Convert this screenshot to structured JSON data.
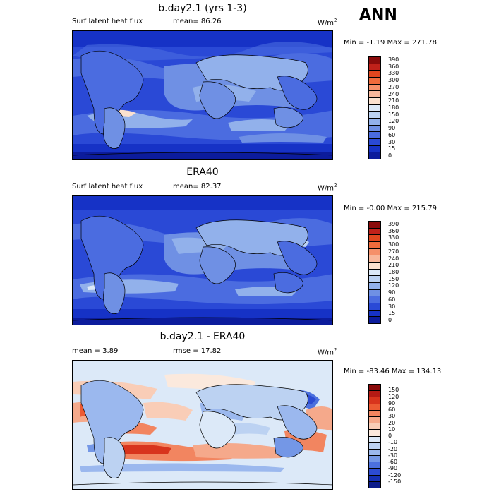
{
  "season": "ANN",
  "panels": [
    {
      "title": "b.day2.1 (yrs 1-3)",
      "left_label": "Surf latent heat flux",
      "center_label": "mean=  86.26",
      "units": "W/m",
      "units_sup": "2",
      "minmax": "Min =  -1.19 Max = 271.78",
      "levels": [
        "390",
        "360",
        "330",
        "300",
        "270",
        "240",
        "210",
        "180",
        "150",
        "120",
        "90",
        "60",
        "30",
        "15",
        "0"
      ],
      "colors": [
        "#8a0b0b",
        "#c0211a",
        "#e0471f",
        "#ef6b3c",
        "#f5906a",
        "#f8b79b",
        "#fbe1cf",
        "#dce9f8",
        "#bcd2f2",
        "#92b1eb",
        "#6f90e4",
        "#4b6ce0",
        "#2a49d6",
        "#1632c6",
        "#0c1c9c"
      ]
    },
    {
      "title": "ERA40",
      "left_label": "Surf latent heat flux",
      "center_label": "mean=  82.37",
      "units": "W/m",
      "units_sup": "2",
      "minmax": "Min =  -0.00 Max = 215.79",
      "levels": [
        "390",
        "360",
        "330",
        "300",
        "270",
        "240",
        "210",
        "180",
        "150",
        "120",
        "90",
        "60",
        "30",
        "15",
        "0"
      ],
      "colors": [
        "#8a0b0b",
        "#c0211a",
        "#e0471f",
        "#ef6b3c",
        "#f5906a",
        "#f8b79b",
        "#fbe1cf",
        "#dce9f8",
        "#bcd2f2",
        "#92b1eb",
        "#6f90e4",
        "#4b6ce0",
        "#2a49d6",
        "#1632c6",
        "#0c1c9c"
      ]
    },
    {
      "title": "b.day2.1 - ERA40",
      "left_label": "mean =   3.89",
      "center_label": "rmse =  17.82",
      "units": "W/m",
      "units_sup": "2",
      "minmax": "Min = -83.46 Max = 134.13",
      "levels": [
        "150",
        "120",
        "90",
        "60",
        "30",
        "20",
        "10",
        "0",
        "-10",
        "-20",
        "-30",
        "-60",
        "-90",
        "-120",
        "-150"
      ],
      "colors": [
        "#8a0b0b",
        "#b51a14",
        "#d8341d",
        "#ec5a33",
        "#f28560",
        "#f5a98b",
        "#f9cdb7",
        "#fbe9dd",
        "#dce9f8",
        "#bcd2f2",
        "#9bb8ee",
        "#7497e6",
        "#4c70de",
        "#2c4bd2",
        "#1530b4",
        "#0c1c8c"
      ]
    }
  ]
}
